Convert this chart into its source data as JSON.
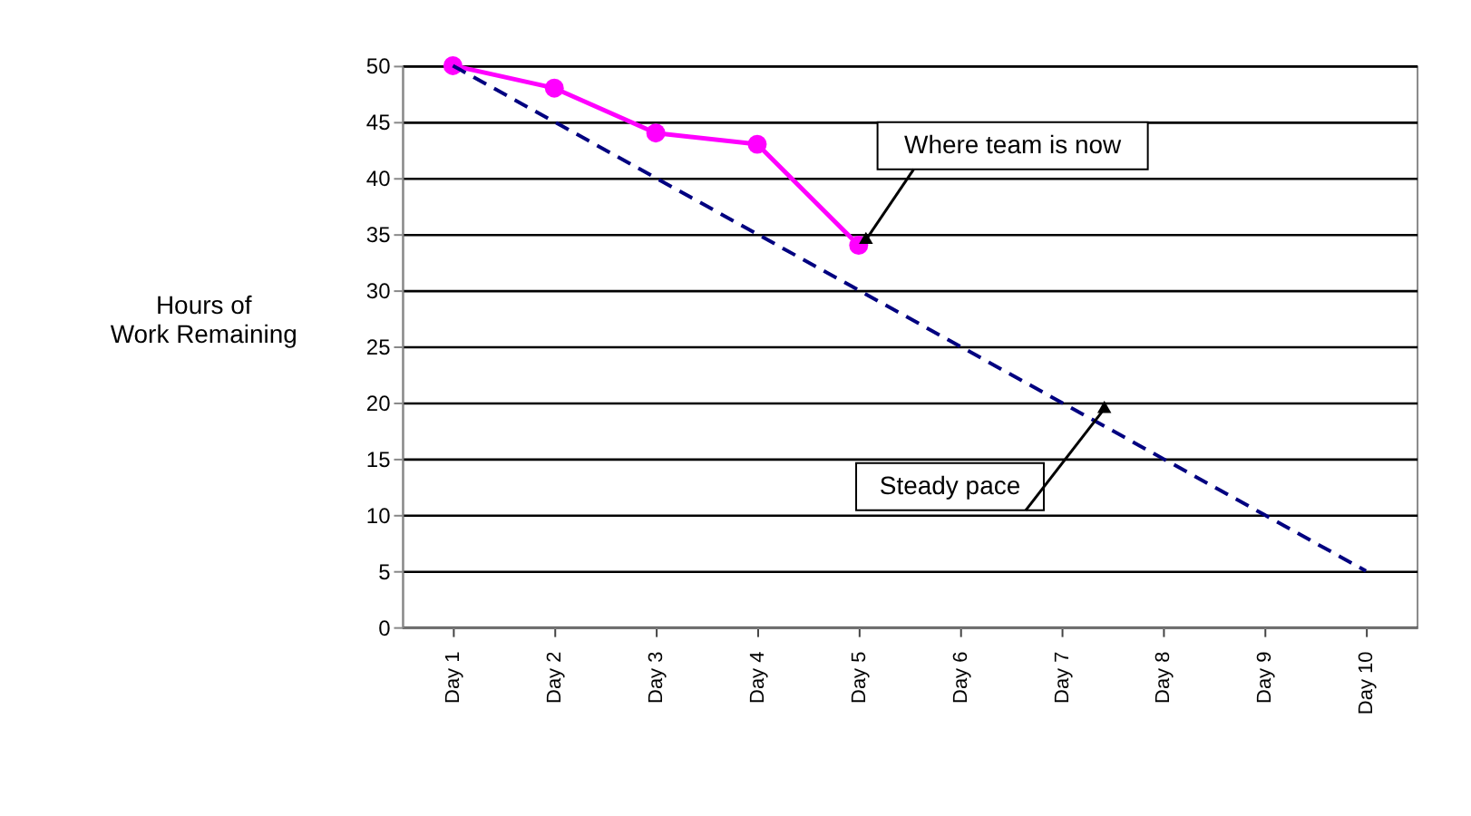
{
  "chart_data": {
    "type": "line",
    "ylabel": "Hours of Work Remaining",
    "categories": [
      "Day 1",
      "Day 2",
      "Day 3",
      "Day 4",
      "Day 5",
      "Day 6",
      "Day 7",
      "Day 8",
      "Day 9",
      "Day 10"
    ],
    "series": [
      {
        "color": "#ff00ff",
        "values": [
          50,
          48,
          44,
          43,
          34,
          null,
          null,
          null,
          null,
          null
        ],
        "marker": "circle",
        "line_style": "solid"
      },
      {
        "color": "#000080",
        "values": [
          50,
          45,
          40,
          35,
          30,
          25,
          20,
          15,
          10,
          5
        ],
        "marker": "none",
        "line_style": "dashed"
      }
    ],
    "ylim": [
      0,
      50
    ],
    "yticks": [
      0,
      5,
      10,
      15,
      20,
      25,
      30,
      35,
      40,
      45,
      50
    ],
    "grid": "y",
    "annotations": [
      {
        "text": "Where team is now",
        "x": "Day 5",
        "y": 34
      },
      "Steady pace"
    ]
  }
}
